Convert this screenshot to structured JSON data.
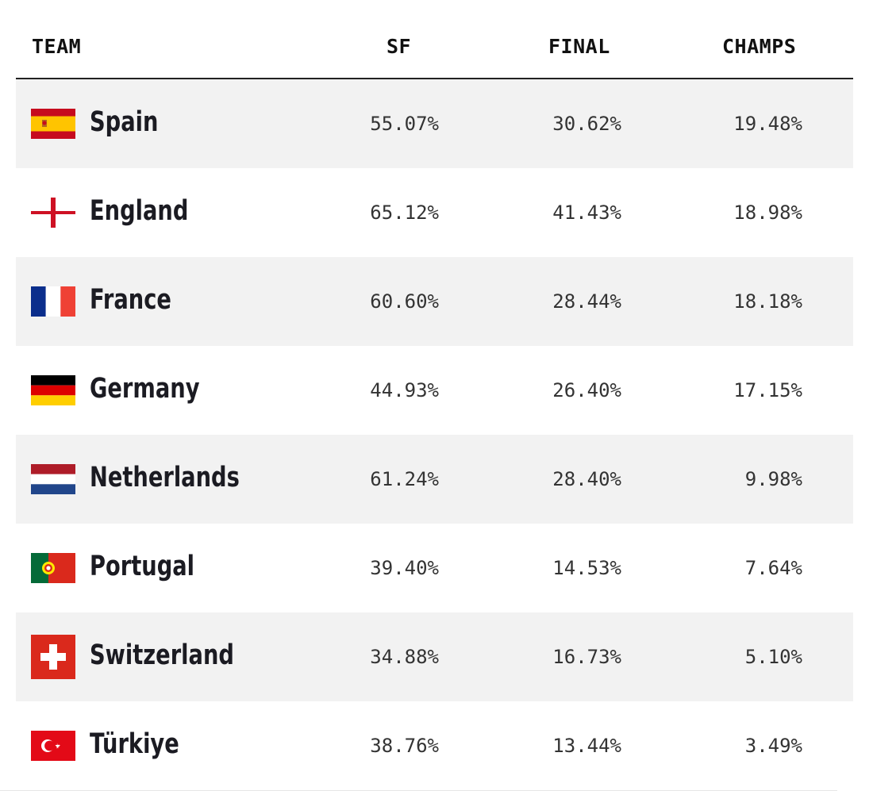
{
  "header": {
    "team": "TEAM",
    "sf": "SF",
    "final": "FINAL",
    "champs": "CHAMPS"
  },
  "rows": [
    {
      "team": "Spain",
      "sf": "55.07%",
      "final": "30.62%",
      "champs": "19.48%",
      "flag_icon": "spain-flag-icon"
    },
    {
      "team": "England",
      "sf": "65.12%",
      "final": "41.43%",
      "champs": "18.98%",
      "flag_icon": "england-flag-icon"
    },
    {
      "team": "France",
      "sf": "60.60%",
      "final": "28.44%",
      "champs": "18.18%",
      "flag_icon": "france-flag-icon"
    },
    {
      "team": "Germany",
      "sf": "44.93%",
      "final": "26.40%",
      "champs": "17.15%",
      "flag_icon": "germany-flag-icon"
    },
    {
      "team": "Netherlands",
      "sf": "61.24%",
      "final": "28.40%",
      "champs": "9.98%",
      "flag_icon": "netherlands-flag-icon"
    },
    {
      "team": "Portugal",
      "sf": "39.40%",
      "final": "14.53%",
      "champs": "7.64%",
      "flag_icon": "portugal-flag-icon"
    },
    {
      "team": "Switzerland",
      "sf": "34.88%",
      "final": "16.73%",
      "champs": "5.10%",
      "flag_icon": "switzerland-flag-icon"
    },
    {
      "team": "Türkiye",
      "sf": "38.76%",
      "final": "13.44%",
      "champs": "3.49%",
      "flag_icon": "turkiye-flag-icon"
    }
  ],
  "colors": {
    "row_shade": "#f2f2f2",
    "header_rule": "#222222"
  }
}
